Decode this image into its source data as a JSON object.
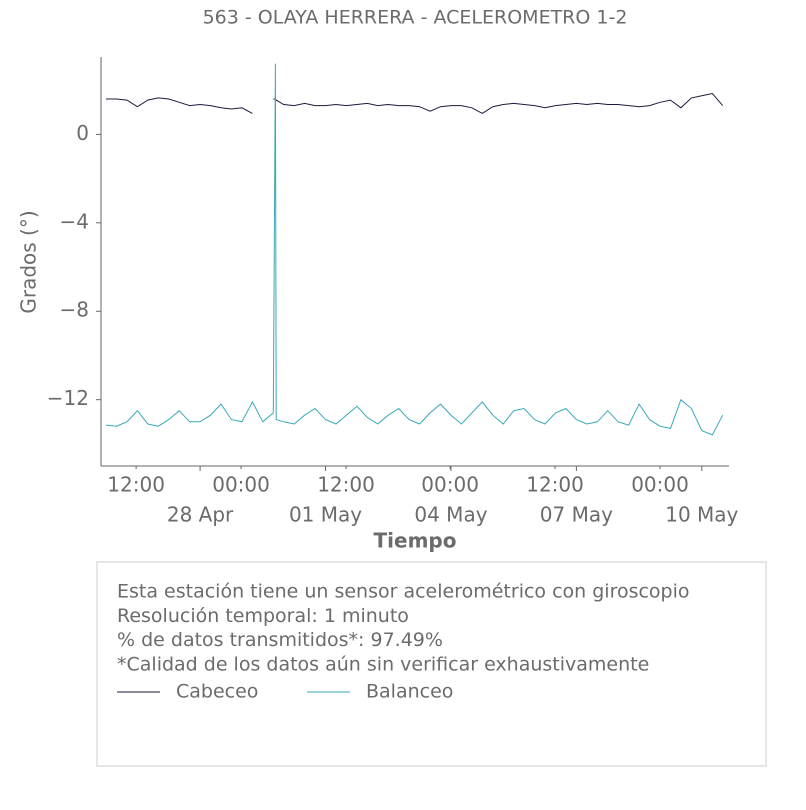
{
  "chart_data": {
    "type": "line",
    "title": "563 - OLAYA HERRERA - ACELEROMETRO 1-2",
    "xlabel": "Tiempo",
    "ylabel": "Grados (°)",
    "x": [
      25.75,
      26.0,
      26.25,
      26.5,
      26.75,
      27.0,
      27.25,
      27.5,
      27.75,
      28.0,
      28.25,
      28.5,
      28.75,
      29.0,
      29.25,
      29.5,
      29.75,
      29.8,
      29.82,
      30.0,
      30.25,
      30.5,
      30.75,
      31.0,
      31.25,
      31.5,
      31.75,
      32.0,
      32.25,
      32.5,
      32.75,
      33.0,
      33.25,
      33.5,
      33.75,
      34.0,
      34.25,
      34.5,
      34.75,
      35.0,
      35.25,
      35.5,
      35.75,
      36.0,
      36.25,
      36.5,
      36.75,
      37.0,
      37.25,
      37.5,
      37.75,
      38.0,
      38.25,
      38.5,
      38.75,
      39.0,
      39.25,
      39.5,
      39.75,
      40.0,
      40.25,
      40.5
    ],
    "series": [
      {
        "name": "Cabeceo",
        "color": "#1b1b3d",
        "values": [
          1.6,
          1.6,
          1.55,
          1.25,
          1.55,
          1.65,
          1.6,
          1.45,
          1.3,
          1.35,
          1.3,
          1.2,
          1.15,
          1.2,
          0.95,
          null,
          1.6,
          1.6,
          1.55,
          1.35,
          1.3,
          1.4,
          1.3,
          1.3,
          1.35,
          1.3,
          1.35,
          1.4,
          1.3,
          1.35,
          1.3,
          1.3,
          1.25,
          1.05,
          1.25,
          1.3,
          1.3,
          1.2,
          0.95,
          1.25,
          1.35,
          1.4,
          1.35,
          1.3,
          1.2,
          1.3,
          1.35,
          1.4,
          1.35,
          1.4,
          1.35,
          1.35,
          1.3,
          1.25,
          1.3,
          1.45,
          1.55,
          1.2,
          1.65,
          1.75,
          1.85,
          1.3
        ]
      },
      {
        "name": "Balanceo",
        "color": "#3aa9b9",
        "values": [
          -13.15,
          -13.2,
          -13.0,
          -12.5,
          -13.1,
          -13.2,
          -12.9,
          -12.5,
          -13.0,
          -13.0,
          -12.7,
          -12.2,
          -12.9,
          -13.0,
          -12.1,
          -13.0,
          -12.6,
          3.2,
          -12.9,
          -13.0,
          -13.1,
          -12.7,
          -12.4,
          -12.9,
          -13.1,
          -12.7,
          -12.3,
          -12.8,
          -13.1,
          -12.7,
          -12.4,
          -12.9,
          -13.1,
          -12.6,
          -12.2,
          -12.7,
          -13.1,
          -12.6,
          -12.1,
          -12.7,
          -13.1,
          -12.5,
          -12.4,
          -12.9,
          -13.1,
          -12.6,
          -12.4,
          -12.9,
          -13.1,
          -13.0,
          -12.5,
          -13.0,
          -13.15,
          -12.2,
          -12.9,
          -13.2,
          -13.3,
          -12.0,
          -12.4,
          -13.4,
          -13.6,
          -12.7
        ]
      }
    ],
    "xlim": [
      25.63,
      40.65
    ],
    "xticks": [
      {
        "value": 28,
        "label": "28 Apr"
      },
      {
        "value": 31,
        "label": "01 May"
      },
      {
        "value": 34,
        "label": "04 May"
      },
      {
        "value": 37,
        "label": "07 May"
      },
      {
        "value": 40,
        "label": "10 May"
      }
    ],
    "xminor_ticks": [
      {
        "value": 26.47,
        "label": "12:00"
      },
      {
        "value": 28.98,
        "label": "00:00"
      },
      {
        "value": 31.49,
        "label": "12:00"
      },
      {
        "value": 33.98,
        "label": "00:00"
      },
      {
        "value": 36.49,
        "label": "12:00"
      },
      {
        "value": 39.0,
        "label": "00:00"
      }
    ],
    "ylim": [
      -15,
      3.5
    ],
    "yticks": [
      {
        "value": 0,
        "label": "0"
      },
      {
        "value": -4,
        "label": "−4"
      },
      {
        "value": -8,
        "label": "−8"
      },
      {
        "value": -12,
        "label": "−12"
      }
    ],
    "grid": false,
    "notes": [
      "Esta estación tiene un sensor acelerométrico con giroscopio",
      "Resolución temporal: 1 minuto",
      "% de datos transmitidos*: 97.49%",
      "*Calidad de los datos aún sin verificar exhaustivamente"
    ]
  }
}
